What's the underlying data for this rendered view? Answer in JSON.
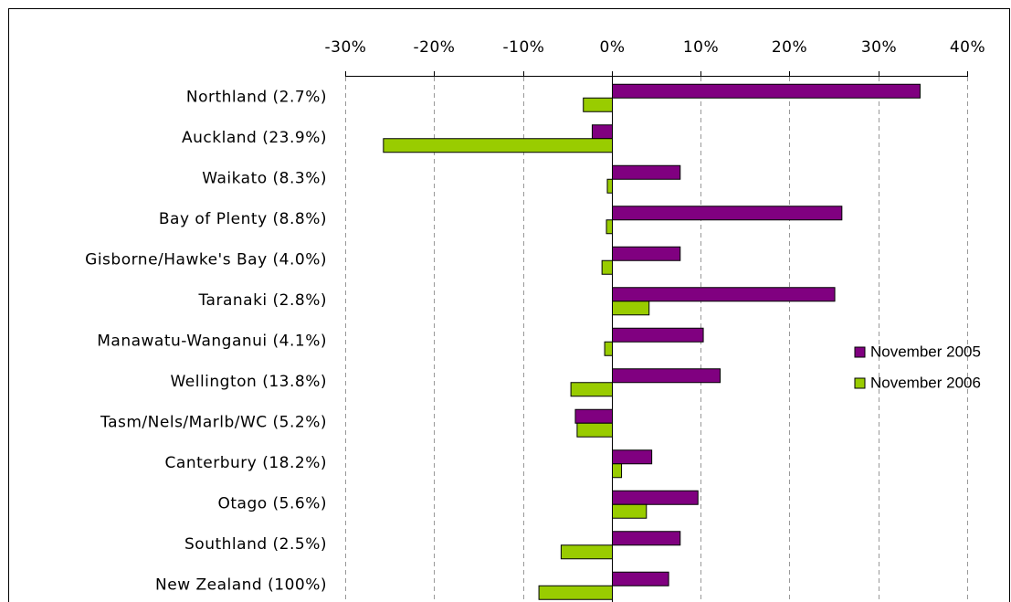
{
  "chart_data": {
    "type": "bar",
    "orientation": "horizontal",
    "categories": [
      "Northland (2.7%)",
      "Auckland (23.9%)",
      "Waikato (8.3%)",
      "Bay of Plenty (8.8%)",
      "Gisborne/Hawke's Bay (4.0%)",
      "Taranaki (2.8%)",
      "Manawatu-Wanganui (4.1%)",
      "Wellington (13.8%)",
      "Tasm/Nels/Marlb/WC (5.2%)",
      "Canterbury (18.2%)",
      "Otago (5.6%)",
      "Southland (2.5%)",
      "New Zealand (100%)"
    ],
    "series": [
      {
        "name": "November 2005",
        "color": "#800080",
        "values": [
          34.7,
          -2.2,
          7.7,
          25.9,
          7.7,
          25.1,
          10.3,
          12.2,
          -4.1,
          4.5,
          9.7,
          7.7,
          6.4
        ]
      },
      {
        "name": "November 2006",
        "color": "#99cc00",
        "values": [
          -3.2,
          -25.7,
          -0.5,
          -0.6,
          -1.1,
          4.2,
          -0.8,
          -4.6,
          -3.9,
          1.1,
          3.9,
          -5.7,
          -8.2
        ]
      }
    ],
    "xlim": [
      -30,
      40
    ],
    "xticks": [
      {
        "value": -30,
        "label": "-30%"
      },
      {
        "value": -20,
        "label": "-20%"
      },
      {
        "value": -10,
        "label": "-10%"
      },
      {
        "value": 0,
        "label": "0%"
      },
      {
        "value": 10,
        "label": "10%"
      },
      {
        "value": 20,
        "label": "20%"
      },
      {
        "value": 30,
        "label": "30%"
      },
      {
        "value": 40,
        "label": "40%"
      }
    ],
    "grid": true,
    "legend_position": "right"
  }
}
